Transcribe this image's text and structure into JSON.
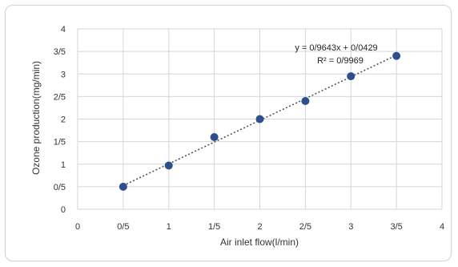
{
  "chart_data": {
    "type": "scatter",
    "title": "",
    "xlabel": "Air inlet flow(l/min)",
    "ylabel": "Ozone production(mg/min)",
    "xlim": [
      0,
      4
    ],
    "ylim": [
      0,
      4
    ],
    "x_tick_labels": [
      "0",
      "0/5",
      "1",
      "1/5",
      "2",
      "2/5",
      "3",
      "3/5",
      "4"
    ],
    "y_tick_labels": [
      "0",
      "0/5",
      "1",
      "1/5",
      "2",
      "2/5",
      "3",
      "3/5",
      "4"
    ],
    "grid": true,
    "series": [
      {
        "x": [
          0.5,
          1.0,
          1.5,
          2.0,
          2.5,
          3.0,
          3.5
        ],
        "y": [
          0.5,
          0.97,
          1.6,
          2.0,
          2.4,
          2.95,
          3.4
        ],
        "color": "#2e4f8f"
      }
    ],
    "trendline": {
      "style": "dotted",
      "slope": 0.9643,
      "intercept": 0.0429,
      "x_range": [
        0.5,
        3.5
      ],
      "equation_label": "y = 0/9643x + 0/0429",
      "r2_label": "R² = 0/9969"
    }
  }
}
